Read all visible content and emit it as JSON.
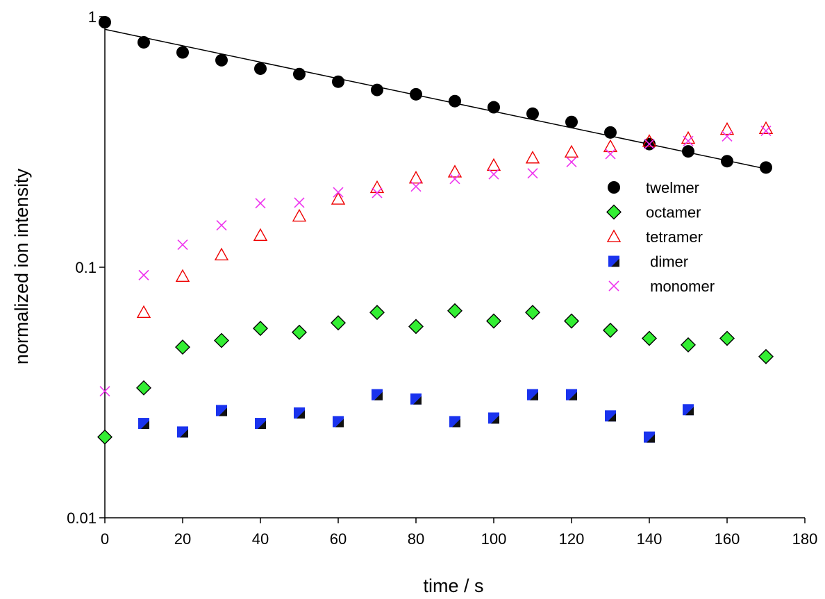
{
  "chart_data": {
    "type": "scatter",
    "title": "",
    "xlabel": "time / s",
    "ylabel": "normalized ion intensity",
    "xlim": [
      0,
      180
    ],
    "ylim": [
      0.01,
      1
    ],
    "y_scale": "log",
    "grid": false,
    "legend_position": "right",
    "x_ticks": [
      "0",
      "20",
      "40",
      "60",
      "80",
      "100",
      "120",
      "140",
      "160",
      "180"
    ],
    "y_ticks": [
      "0.01",
      "0.1",
      "1"
    ],
    "series": [
      {
        "name": "twelmer",
        "marker": "filled-circle",
        "color": "#000000",
        "x": [
          0,
          10,
          20,
          30,
          40,
          50,
          60,
          70,
          80,
          90,
          100,
          110,
          120,
          130,
          140,
          150,
          160,
          170
        ],
        "y": [
          0.95,
          0.79,
          0.72,
          0.67,
          0.62,
          0.59,
          0.55,
          0.51,
          0.49,
          0.46,
          0.435,
          0.41,
          0.38,
          0.345,
          0.31,
          0.29,
          0.265,
          0.25
        ]
      },
      {
        "name": "octamer",
        "marker": "diamond",
        "color": "#33ee33",
        "x": [
          0,
          10,
          20,
          30,
          40,
          50,
          60,
          70,
          80,
          90,
          100,
          110,
          120,
          130,
          140,
          150,
          160,
          170
        ],
        "y": [
          0.021,
          0.033,
          0.048,
          0.051,
          0.057,
          0.055,
          0.06,
          0.066,
          0.058,
          0.067,
          0.061,
          0.066,
          0.061,
          0.056,
          0.052,
          0.049,
          0.052,
          0.044
        ]
      },
      {
        "name": "tetramer",
        "marker": "open-triangle",
        "color": "#ee0000",
        "x": [
          10,
          20,
          30,
          40,
          50,
          60,
          70,
          80,
          90,
          100,
          110,
          120,
          130,
          140,
          150,
          160,
          170
        ],
        "y": [
          0.066,
          0.092,
          0.112,
          0.134,
          0.16,
          0.187,
          0.208,
          0.227,
          0.24,
          0.255,
          0.273,
          0.288,
          0.303,
          0.318,
          0.327,
          0.355,
          0.358
        ]
      },
      {
        "name": " dimer",
        "marker": "filled-square",
        "color": "#1a33ee",
        "x": [
          10,
          20,
          30,
          40,
          50,
          60,
          70,
          80,
          90,
          100,
          110,
          120,
          130,
          140,
          150
        ],
        "y": [
          0.0238,
          0.022,
          0.0268,
          0.0238,
          0.0262,
          0.0242,
          0.031,
          0.0298,
          0.0242,
          0.025,
          0.031,
          0.031,
          0.0255,
          0.021,
          0.027
        ]
      },
      {
        "name": " monomer",
        "marker": "x",
        "color": "#ee33ee",
        "x": [
          0,
          10,
          20,
          30,
          40,
          50,
          60,
          70,
          80,
          90,
          100,
          110,
          120,
          130,
          140,
          150,
          160,
          170
        ],
        "y": [
          0.032,
          0.093,
          0.123,
          0.147,
          0.18,
          0.181,
          0.199,
          0.198,
          0.21,
          0.225,
          0.235,
          0.237,
          0.263,
          0.283,
          0.31,
          0.319,
          0.333,
          0.35
        ]
      }
    ],
    "fit_line": {
      "series": "twelmer",
      "x": [
        0,
        170
      ],
      "y": [
        0.89,
        0.247
      ]
    }
  }
}
